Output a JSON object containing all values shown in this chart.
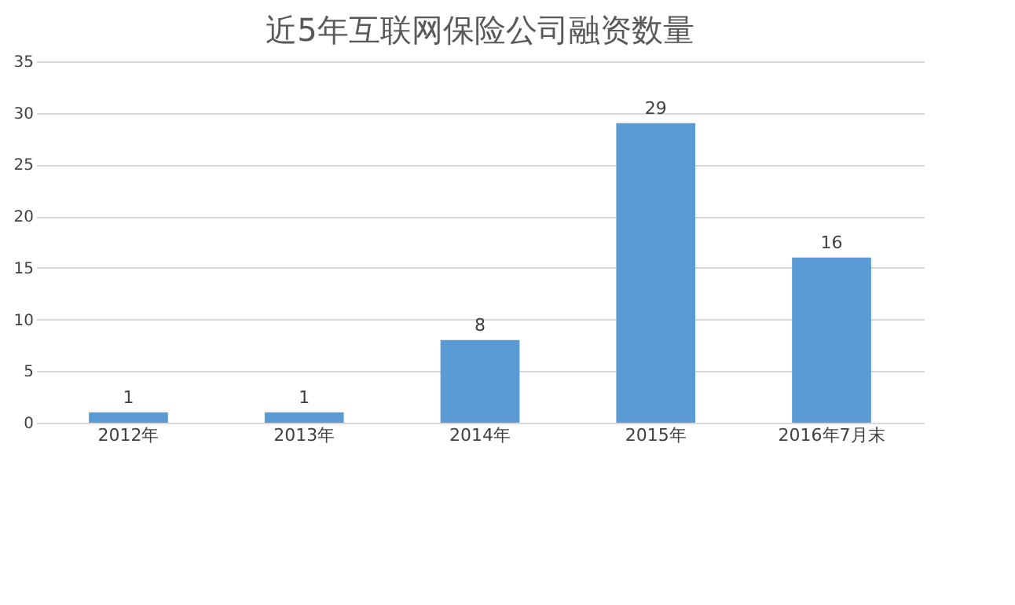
{
  "chart_data": {
    "type": "bar",
    "title": "近5年互联网保险公司融资数量",
    "categories": [
      "2012年",
      "2013年",
      "2014年",
      "2015年",
      "2016年7月末"
    ],
    "values": [
      1,
      1,
      8,
      29,
      16
    ],
    "color": "#5b9bd5",
    "ylim": [
      0,
      35
    ],
    "yticks": [
      0,
      5,
      10,
      15,
      20,
      25,
      30,
      35
    ],
    "grid": "y",
    "data_labels": true
  }
}
